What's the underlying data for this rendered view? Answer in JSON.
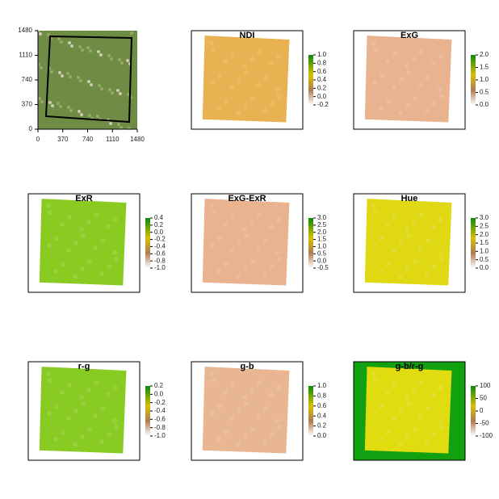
{
  "chart_data": [
    {
      "type": "image",
      "xlim": [
        0,
        1480
      ],
      "ylim": [
        0,
        1480
      ],
      "xticks": [
        0,
        370,
        740,
        1110,
        1480
      ],
      "yticks": [
        0,
        370,
        740,
        1110,
        1480
      ]
    },
    {
      "type": "raster",
      "title": "NDI",
      "color": "#e8b252",
      "yticks": [
        {
          "value": -0.2,
          "label": "-0.2"
        },
        {
          "value": 0,
          "label": "0.0"
        },
        0.2,
        0.4,
        0.6,
        0.8,
        {
          "value": 1,
          "label": "1.0"
        }
      ]
    },
    {
      "type": "raster",
      "title": "ExG",
      "color": "#e9b38f",
      "yticks": [
        {
          "value": 0,
          "label": "0.0"
        },
        0.5,
        {
          "value": 1,
          "label": "1.0"
        },
        1.5,
        {
          "value": 2,
          "label": "2.0"
        }
      ]
    },
    {
      "type": "raster",
      "title": "ExR",
      "color": "#8acb22",
      "yticks": [
        {
          "value": -1,
          "label": "-1.0"
        },
        -0.8,
        -0.6,
        -0.4,
        -0.2,
        {
          "value": 0,
          "label": "0.0"
        },
        0.2,
        0.4
      ]
    },
    {
      "type": "raster",
      "title": "ExG-ExR",
      "color": "#e9b38f",
      "yticks": [
        -0.5,
        {
          "value": 0,
          "label": "0.0"
        },
        0.5,
        {
          "value": 1,
          "label": "1.0"
        },
        1.5,
        {
          "value": 2,
          "label": "2.0"
        },
        2.5,
        {
          "value": 3,
          "label": "3.0"
        }
      ]
    },
    {
      "type": "raster",
      "title": "Hue",
      "color": "#e0d812",
      "yticks": [
        {
          "value": 0,
          "label": "0.0"
        },
        0.5,
        {
          "value": 1,
          "label": "1.0"
        },
        1.5,
        {
          "value": 2,
          "label": "2.0"
        },
        2.5,
        {
          "value": 3,
          "label": "3.0"
        }
      ]
    },
    {
      "type": "raster",
      "title": "r-g",
      "color": "#88cb22",
      "yticks": [
        {
          "value": -1,
          "label": "-1.0"
        },
        -0.8,
        -0.6,
        -0.4,
        -0.2,
        {
          "value": 0,
          "label": "0.0"
        },
        0.2
      ]
    },
    {
      "type": "raster",
      "title": "g-b",
      "color": "#e8b792",
      "yticks": [
        {
          "value": 0,
          "label": "0.0"
        },
        0.2,
        0.4,
        0.6,
        0.8,
        {
          "value": 1,
          "label": "1.0"
        }
      ]
    },
    {
      "type": "raster",
      "title": "g-b/r-g",
      "color": "#e0dc10",
      "background": "#10a010",
      "yticks": [
        -100,
        -50,
        0,
        50,
        100
      ]
    }
  ]
}
